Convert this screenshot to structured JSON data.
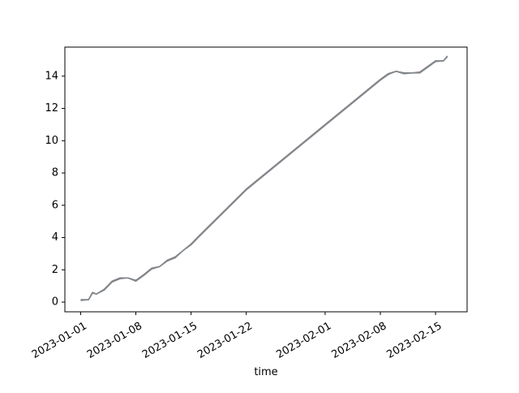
{
  "chart_data": {
    "type": "line",
    "title": "",
    "xlabel": "time",
    "ylabel": "",
    "x_axis_type": "date",
    "xlim": [
      "2022-12-30",
      "2023-02-19"
    ],
    "ylim": [
      -0.6,
      15.8
    ],
    "x_ticks": [
      "2023-01-01",
      "2023-01-08",
      "2023-01-15",
      "2023-01-22",
      "2023-02-01",
      "2023-02-08",
      "2023-02-15"
    ],
    "x_tick_labels": [
      "2023-01-01",
      "2023-01-08",
      "2023-01-15",
      "2023-01-22",
      "2023-02-01",
      "2023-02-08",
      "2023-02-15"
    ],
    "y_ticks": [
      0,
      2,
      4,
      6,
      8,
      10,
      12,
      14
    ],
    "y_tick_labels": [
      "0",
      "2",
      "4",
      "6",
      "8",
      "10",
      "12",
      "14"
    ],
    "grid": false,
    "legend": "none",
    "series_colors": [
      "#8a7a7f",
      "#7f8a8f"
    ],
    "series": [
      {
        "x": [
          "2023-01-01",
          "2023-01-02",
          "2023-01-02T12:00",
          "2023-01-03",
          "2023-01-04",
          "2023-01-05",
          "2023-01-06",
          "2023-01-07",
          "2023-01-08",
          "2023-01-09",
          "2023-01-10",
          "2023-01-11",
          "2023-01-12",
          "2023-01-13",
          "2023-01-14",
          "2023-01-15",
          "2023-01-16",
          "2023-01-22",
          "2023-02-01",
          "2023-02-08",
          "2023-02-09",
          "2023-02-10",
          "2023-02-11",
          "2023-02-12",
          "2023-02-13",
          "2023-02-14",
          "2023-02-15",
          "2023-02-16",
          "2023-02-16T12:00"
        ],
        "y": [
          0.15,
          0.15,
          0.6,
          0.5,
          0.8,
          1.3,
          1.5,
          1.5,
          1.35,
          1.7,
          2.1,
          2.2,
          2.6,
          2.8,
          3.2,
          3.6,
          4.1,
          7.0,
          11.0,
          13.8,
          14.15,
          14.3,
          14.2,
          14.2,
          14.25,
          14.6,
          14.95,
          14.95,
          15.2
        ]
      },
      {
        "x": [
          "2023-01-01",
          "2023-01-02",
          "2023-01-02T12:00",
          "2023-01-03",
          "2023-01-04",
          "2023-01-05",
          "2023-01-06",
          "2023-01-07",
          "2023-01-08",
          "2023-01-09",
          "2023-01-10",
          "2023-01-11",
          "2023-01-12",
          "2023-01-13",
          "2023-01-14",
          "2023-01-15",
          "2023-01-16",
          "2023-01-22",
          "2023-02-01",
          "2023-02-08",
          "2023-02-09",
          "2023-02-10",
          "2023-02-11",
          "2023-02-12",
          "2023-02-13",
          "2023-02-14",
          "2023-02-15",
          "2023-02-16",
          "2023-02-16T12:00"
        ],
        "y": [
          0.1,
          0.15,
          0.55,
          0.5,
          0.75,
          1.25,
          1.45,
          1.5,
          1.3,
          1.65,
          2.05,
          2.2,
          2.55,
          2.75,
          3.2,
          3.55,
          4.05,
          6.95,
          10.95,
          13.75,
          14.1,
          14.3,
          14.15,
          14.2,
          14.2,
          14.55,
          14.9,
          14.95,
          15.25
        ]
      }
    ]
  }
}
